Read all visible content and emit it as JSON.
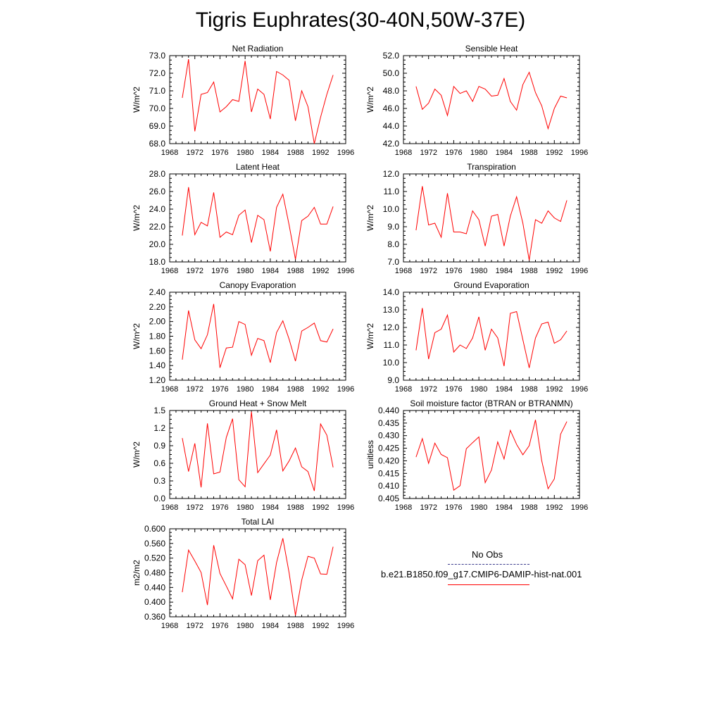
{
  "title": "Tigris Euphrates(30-40N,50W-37E)",
  "colors": {
    "model_line": "#ff0000",
    "obs_line": "#3a3a8c",
    "axis": "#000000"
  },
  "legend": {
    "obs_label": "No Obs",
    "model_label": "b.e21.B1850.f09_g17.CMIP6-DAMIP-hist-nat.001"
  },
  "chart_data": [
    {
      "type": "line",
      "title": "Net Radiation",
      "ylabel": "W/m^2",
      "xlim": [
        1968,
        1996
      ],
      "ylim": [
        68.0,
        73.0
      ],
      "xticks": [
        "1968",
        "1972",
        "1976",
        "1980",
        "1984",
        "1988",
        "1992",
        "1996"
      ],
      "yticks": [
        "68.0",
        "69.0",
        "70.0",
        "71.0",
        "72.0",
        "73.0"
      ],
      "x": [
        1970,
        1971,
        1972,
        1973,
        1974,
        1975,
        1976,
        1977,
        1978,
        1979,
        1980,
        1981,
        1982,
        1983,
        1984,
        1985,
        1986,
        1987,
        1988,
        1989,
        1990,
        1991,
        1992,
        1993,
        1994
      ],
      "series": [
        {
          "values": [
            70.6,
            72.8,
            68.7,
            70.8,
            70.9,
            71.5,
            69.8,
            70.1,
            70.5,
            70.4,
            72.7,
            69.8,
            71.1,
            70.8,
            69.4,
            72.1,
            71.9,
            71.6,
            69.3,
            71.0,
            70.1,
            68.0,
            69.5,
            70.8,
            71.9
          ]
        }
      ]
    },
    {
      "type": "line",
      "title": "Sensible Heat",
      "ylabel": "W/m^2",
      "xlim": [
        1968,
        1996
      ],
      "ylim": [
        42.0,
        52.0
      ],
      "xticks": [
        "1968",
        "1972",
        "1976",
        "1980",
        "1984",
        "1988",
        "1992",
        "1996"
      ],
      "yticks": [
        "42.0",
        "44.0",
        "46.0",
        "48.0",
        "50.0",
        "52.0"
      ],
      "x": [
        1970,
        1971,
        1972,
        1973,
        1974,
        1975,
        1976,
        1977,
        1978,
        1979,
        1980,
        1981,
        1982,
        1983,
        1984,
        1985,
        1986,
        1987,
        1988,
        1989,
        1990,
        1991,
        1992,
        1993,
        1994
      ],
      "series": [
        {
          "values": [
            48.5,
            45.9,
            46.6,
            48.2,
            47.5,
            45.2,
            48.5,
            47.7,
            48.0,
            46.8,
            48.5,
            48.2,
            47.4,
            47.5,
            49.4,
            46.8,
            45.8,
            48.7,
            50.1,
            47.8,
            46.3,
            43.7,
            46.0,
            47.4,
            47.2
          ]
        }
      ]
    },
    {
      "type": "line",
      "title": "Latent Heat",
      "ylabel": "W/m^2",
      "xlim": [
        1968,
        1996
      ],
      "ylim": [
        18.0,
        28.0
      ],
      "xticks": [
        "1968",
        "1972",
        "1976",
        "1980",
        "1984",
        "1988",
        "1992",
        "1996"
      ],
      "yticks": [
        "18.0",
        "20.0",
        "22.0",
        "24.0",
        "26.0",
        "28.0"
      ],
      "x": [
        1970,
        1971,
        1972,
        1973,
        1974,
        1975,
        1976,
        1977,
        1978,
        1979,
        1980,
        1981,
        1982,
        1983,
        1984,
        1985,
        1986,
        1987,
        1988,
        1989,
        1990,
        1991,
        1992,
        1993,
        1994
      ],
      "series": [
        {
          "values": [
            21.0,
            26.5,
            21.1,
            22.5,
            22.1,
            25.9,
            20.8,
            21.4,
            21.1,
            23.3,
            23.9,
            20.2,
            23.3,
            22.8,
            19.2,
            24.2,
            25.7,
            22.2,
            18.3,
            22.7,
            23.2,
            24.2,
            22.3,
            22.3,
            24.3
          ]
        }
      ]
    },
    {
      "type": "line",
      "title": "Transpiration",
      "ylabel": "W/m^2",
      "xlim": [
        1968,
        1996
      ],
      "ylim": [
        7.0,
        12.0
      ],
      "xticks": [
        "1968",
        "1972",
        "1976",
        "1980",
        "1984",
        "1988",
        "1992",
        "1996"
      ],
      "yticks": [
        "7.0",
        "8.0",
        "9.0",
        "10.0",
        "11.0",
        "12.0"
      ],
      "x": [
        1970,
        1971,
        1972,
        1973,
        1974,
        1975,
        1976,
        1977,
        1978,
        1979,
        1980,
        1981,
        1982,
        1983,
        1984,
        1985,
        1986,
        1987,
        1988,
        1989,
        1990,
        1991,
        1992,
        1993,
        1994
      ],
      "series": [
        {
          "values": [
            8.8,
            11.3,
            9.1,
            9.2,
            8.4,
            10.9,
            8.7,
            8.7,
            8.6,
            9.9,
            9.4,
            7.9,
            9.6,
            9.7,
            7.9,
            9.6,
            10.7,
            9.2,
            7.1,
            9.4,
            9.2,
            9.9,
            9.5,
            9.3,
            10.5
          ]
        }
      ]
    },
    {
      "type": "line",
      "title": "Canopy Evaporation",
      "ylabel": "W/m^2",
      "xlim": [
        1968,
        1996
      ],
      "ylim": [
        1.2,
        2.4
      ],
      "xticks": [
        "1968",
        "1972",
        "1976",
        "1980",
        "1984",
        "1988",
        "1992",
        "1996"
      ],
      "yticks": [
        "1.20",
        "1.40",
        "1.60",
        "1.80",
        "2.00",
        "2.20",
        "2.40"
      ],
      "x": [
        1970,
        1971,
        1972,
        1973,
        1974,
        1975,
        1976,
        1977,
        1978,
        1979,
        1980,
        1981,
        1982,
        1983,
        1984,
        1985,
        1986,
        1987,
        1988,
        1989,
        1990,
        1991,
        1992,
        1993,
        1994
      ],
      "series": [
        {
          "values": [
            1.48,
            2.15,
            1.75,
            1.63,
            1.82,
            2.24,
            1.37,
            1.64,
            1.65,
            2.0,
            1.96,
            1.54,
            1.77,
            1.74,
            1.44,
            1.85,
            2.01,
            1.76,
            1.46,
            1.87,
            1.92,
            1.98,
            1.74,
            1.72,
            1.9
          ]
        }
      ]
    },
    {
      "type": "line",
      "title": "Ground Evaporation",
      "ylabel": "W/m^2",
      "xlim": [
        1968,
        1996
      ],
      "ylim": [
        9.0,
        14.0
      ],
      "xticks": [
        "1968",
        "1972",
        "1976",
        "1980",
        "1984",
        "1988",
        "1992",
        "1996"
      ],
      "yticks": [
        "9.0",
        "10.0",
        "11.0",
        "12.0",
        "13.0",
        "14.0"
      ],
      "x": [
        1970,
        1971,
        1972,
        1973,
        1974,
        1975,
        1976,
        1977,
        1978,
        1979,
        1980,
        1981,
        1982,
        1983,
        1984,
        1985,
        1986,
        1987,
        1988,
        1989,
        1990,
        1991,
        1992,
        1993,
        1994
      ],
      "series": [
        {
          "values": [
            10.7,
            13.1,
            10.2,
            11.7,
            11.9,
            12.7,
            10.6,
            11.0,
            10.8,
            11.4,
            12.6,
            10.7,
            11.9,
            11.4,
            9.8,
            12.8,
            12.9,
            11.3,
            9.7,
            11.4,
            12.2,
            12.3,
            11.1,
            11.3,
            11.8
          ]
        }
      ]
    },
    {
      "type": "line",
      "title": "Ground Heat + Snow Melt",
      "ylabel": "W/m^2",
      "xlim": [
        1968,
        1996
      ],
      "ylim": [
        0.0,
        1.5
      ],
      "xticks": [
        "1968",
        "1972",
        "1976",
        "1980",
        "1984",
        "1988",
        "1992",
        "1996"
      ],
      "yticks": [
        "0.0",
        "0.3",
        "0.6",
        "0.9",
        "1.2",
        "1.5"
      ],
      "x": [
        1970,
        1971,
        1972,
        1973,
        1974,
        1975,
        1976,
        1977,
        1978,
        1979,
        1980,
        1981,
        1982,
        1983,
        1984,
        1985,
        1986,
        1987,
        1988,
        1989,
        1990,
        1991,
        1992,
        1993,
        1994
      ],
      "series": [
        {
          "values": [
            1.03,
            0.46,
            0.94,
            0.19,
            1.28,
            0.42,
            0.45,
            1.04,
            1.36,
            0.32,
            0.2,
            1.48,
            0.44,
            0.59,
            0.74,
            1.17,
            0.47,
            0.64,
            0.86,
            0.54,
            0.46,
            0.13,
            1.27,
            1.08,
            0.53
          ]
        }
      ]
    },
    {
      "type": "line",
      "title": "Soil moisture factor (BTRAN or BTRANMN)",
      "ylabel": "unitless",
      "xlim": [
        1968,
        1996
      ],
      "ylim": [
        0.405,
        0.44
      ],
      "xticks": [
        "1968",
        "1972",
        "1976",
        "1980",
        "1984",
        "1988",
        "1992",
        "1996"
      ],
      "yticks": [
        "0.405",
        "0.410",
        "0.415",
        "0.420",
        "0.425",
        "0.430",
        "0.435",
        "0.440"
      ],
      "x": [
        1970,
        1971,
        1972,
        1973,
        1974,
        1975,
        1976,
        1977,
        1978,
        1979,
        1980,
        1981,
        1982,
        1983,
        1984,
        1985,
        1986,
        1987,
        1988,
        1989,
        1990,
        1991,
        1992,
        1993,
        1994
      ],
      "series": [
        {
          "values": [
            0.4215,
            0.4288,
            0.419,
            0.427,
            0.4225,
            0.4212,
            0.4083,
            0.4101,
            0.4248,
            0.4272,
            0.4295,
            0.4113,
            0.4163,
            0.4275,
            0.4207,
            0.4321,
            0.4265,
            0.4224,
            0.426,
            0.4363,
            0.42,
            0.4089,
            0.4128,
            0.4306,
            0.4356
          ]
        }
      ]
    },
    {
      "type": "line",
      "title": "Total LAI",
      "ylabel": "m2/m2",
      "xlim": [
        1968,
        1996
      ],
      "ylim": [
        0.36,
        0.6
      ],
      "xticks": [
        "1968",
        "1972",
        "1976",
        "1980",
        "1984",
        "1988",
        "1992",
        "1996"
      ],
      "yticks": [
        "0.360",
        "0.400",
        "0.440",
        "0.480",
        "0.520",
        "0.560",
        "0.600"
      ],
      "x": [
        1970,
        1971,
        1972,
        1973,
        1974,
        1975,
        1976,
        1977,
        1978,
        1979,
        1980,
        1981,
        1982,
        1983,
        1984,
        1985,
        1986,
        1987,
        1988,
        1989,
        1990,
        1991,
        1992,
        1993,
        1994
      ],
      "series": [
        {
          "values": [
            0.427,
            0.542,
            0.512,
            0.481,
            0.392,
            0.555,
            0.478,
            0.444,
            0.409,
            0.517,
            0.502,
            0.418,
            0.513,
            0.528,
            0.406,
            0.508,
            0.574,
            0.48,
            0.364,
            0.46,
            0.525,
            0.52,
            0.477,
            0.476,
            0.551
          ]
        }
      ]
    }
  ]
}
